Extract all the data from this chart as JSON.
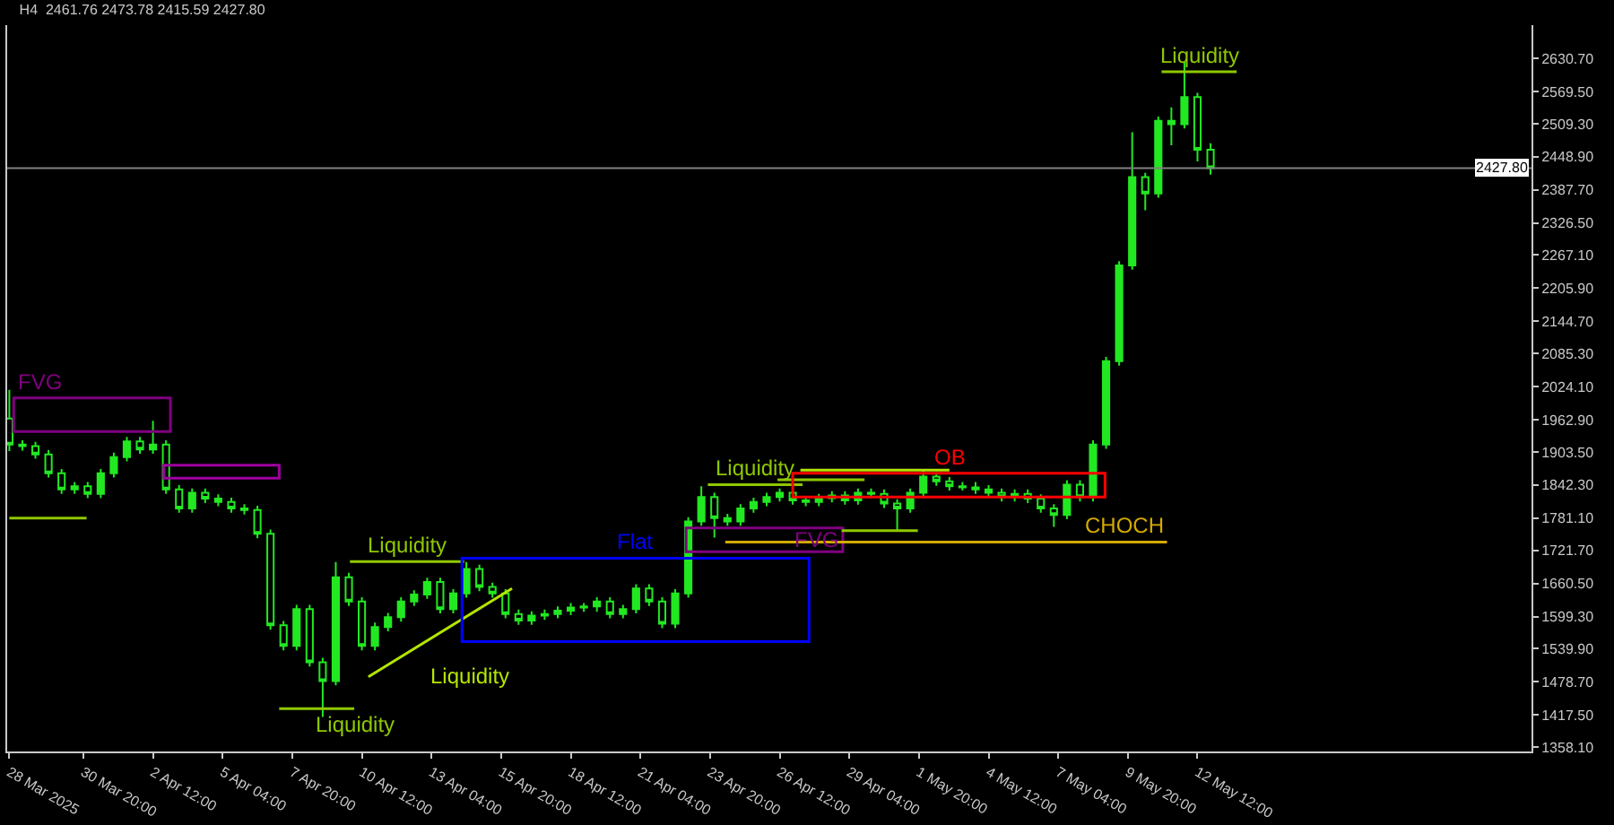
{
  "chart_data": {
    "type": "candlestick",
    "title": "H4  2461.76 2473.78 2415.59 2427.80",
    "xlim": [
      "2025-03-27T22:00",
      "2025-05-25T07:00"
    ],
    "xticks": [
      {
        "value": "2025-03-28T00:00",
        "label": "28 Mar 2025"
      },
      {
        "value": "2025-03-30T20:00",
        "label": "30 Mar 20:00"
      },
      {
        "value": "2025-04-02T12:00",
        "label": "2 Apr 12:00"
      },
      {
        "value": "2025-04-05T04:00",
        "label": "5 Apr 04:00"
      },
      {
        "value": "2025-04-07T20:00",
        "label": "7 Apr 20:00"
      },
      {
        "value": "2025-04-10T12:00",
        "label": "10 Apr 12:00"
      },
      {
        "value": "2025-04-13T04:00",
        "label": "13 Apr 04:00"
      },
      {
        "value": "2025-04-15T20:00",
        "label": "15 Apr 20:00"
      },
      {
        "value": "2025-04-18T12:00",
        "label": "18 Apr 12:00"
      },
      {
        "value": "2025-04-21T04:00",
        "label": "21 Apr 04:00"
      },
      {
        "value": "2025-04-23T20:00",
        "label": "23 Apr 20:00"
      },
      {
        "value": "2025-04-26T12:00",
        "label": "26 Apr 12:00"
      },
      {
        "value": "2025-04-29T04:00",
        "label": "29 Apr 04:00"
      },
      {
        "value": "2025-05-01T20:00",
        "label": "1 May 20:00"
      },
      {
        "value": "2025-05-04T12:00",
        "label": "4 May 12:00"
      },
      {
        "value": "2025-05-07T04:00",
        "label": "7 May 04:00"
      },
      {
        "value": "2025-05-09T20:00",
        "label": "9 May 20:00"
      },
      {
        "value": "2025-05-12T12:00",
        "label": "12 May 12:00"
      }
    ],
    "ylim": [
      1350,
      2692
    ],
    "yticks": [
      {
        "value": 1358.1,
        "label": "1358.10"
      },
      {
        "value": 1417.5,
        "label": "1417.50"
      },
      {
        "value": 1478.7,
        "label": "1478.70"
      },
      {
        "value": 1539.9,
        "label": "1539.90"
      },
      {
        "value": 1599.3,
        "label": "1599.30"
      },
      {
        "value": 1660.5,
        "label": "1660.50"
      },
      {
        "value": 1721.7,
        "label": "1721.70"
      },
      {
        "value": 1781.1,
        "label": "1781.10"
      },
      {
        "value": 1842.3,
        "label": "1842.30"
      },
      {
        "value": 1903.5,
        "label": "1903.50"
      },
      {
        "value": 1962.9,
        "label": "1962.90"
      },
      {
        "value": 2024.1,
        "label": "2024.10"
      },
      {
        "value": 2085.3,
        "label": "2085.30"
      },
      {
        "value": 2144.7,
        "label": "2144.70"
      },
      {
        "value": 2205.9,
        "label": "2205.90"
      },
      {
        "value": 2267.1,
        "label": "2267.10"
      },
      {
        "value": 2326.5,
        "label": "2326.50"
      },
      {
        "value": 2387.7,
        "label": "2387.70"
      },
      {
        "value": 2448.9,
        "label": "2448.90"
      },
      {
        "value": 2509.3,
        "label": "2509.30"
      },
      {
        "value": 2569.5,
        "label": "2569.50"
      },
      {
        "value": 2630.7,
        "label": "2630.70"
      }
    ],
    "grid": false,
    "legend": false,
    "ref_lines": [
      {
        "axis": "y",
        "value": 2427.8,
        "label": "2427.80",
        "color": "#808080"
      }
    ],
    "series": [
      {
        "color": "#22e822",
        "x": [
          "2025-03-28T00:00",
          "2025-03-28T12:00",
          "2025-03-29T00:00",
          "2025-03-29T12:00",
          "2025-03-30T00:00",
          "2025-03-30T12:00",
          "2025-03-31T00:00",
          "2025-03-31T12:00",
          "2025-04-01T00:00",
          "2025-04-01T12:00",
          "2025-04-02T00:00",
          "2025-04-02T12:00",
          "2025-04-03T00:00",
          "2025-04-03T12:00",
          "2025-04-04T00:00",
          "2025-04-04T12:00",
          "2025-04-05T00:00",
          "2025-04-05T12:00",
          "2025-04-06T00:00",
          "2025-04-06T12:00",
          "2025-04-07T00:00",
          "2025-04-07T12:00",
          "2025-04-08T00:00",
          "2025-04-08T12:00",
          "2025-04-09T00:00",
          "2025-04-09T12:00",
          "2025-04-10T00:00",
          "2025-04-10T12:00",
          "2025-04-11T00:00",
          "2025-04-11T12:00",
          "2025-04-12T00:00",
          "2025-04-12T12:00",
          "2025-04-13T00:00",
          "2025-04-13T12:00",
          "2025-04-14T00:00",
          "2025-04-14T12:00",
          "2025-04-15T00:00",
          "2025-04-15T12:00",
          "2025-04-16T00:00",
          "2025-04-16T12:00",
          "2025-04-17T00:00",
          "2025-04-17T12:00",
          "2025-04-18T00:00",
          "2025-04-18T12:00",
          "2025-04-19T00:00",
          "2025-04-19T12:00",
          "2025-04-20T00:00",
          "2025-04-20T12:00",
          "2025-04-21T00:00",
          "2025-04-21T12:00",
          "2025-04-22T00:00",
          "2025-04-22T12:00",
          "2025-04-23T00:00",
          "2025-04-23T12:00",
          "2025-04-24T00:00",
          "2025-04-24T12:00",
          "2025-04-25T00:00",
          "2025-04-25T12:00",
          "2025-04-26T00:00",
          "2025-04-26T12:00",
          "2025-04-27T00:00",
          "2025-04-27T12:00",
          "2025-04-28T00:00",
          "2025-04-28T12:00",
          "2025-04-29T00:00",
          "2025-04-29T12:00",
          "2025-04-30T00:00",
          "2025-04-30T12:00",
          "2025-05-01T00:00",
          "2025-05-01T12:00",
          "2025-05-02T00:00",
          "2025-05-02T12:00",
          "2025-05-03T00:00",
          "2025-05-03T12:00",
          "2025-05-04T00:00",
          "2025-05-04T12:00",
          "2025-05-05T00:00",
          "2025-05-05T12:00",
          "2025-05-06T00:00",
          "2025-05-06T12:00",
          "2025-05-07T00:00",
          "2025-05-07T12:00",
          "2025-05-08T00:00",
          "2025-05-08T12:00",
          "2025-05-09T00:00",
          "2025-05-09T12:00",
          "2025-05-10T00:00",
          "2025-05-10T12:00",
          "2025-05-11T00:00",
          "2025-05-11T12:00",
          "2025-05-12T00:00",
          "2025-05-12T12:00",
          "2025-05-13T00:00"
        ],
        "ohlc": [
          [
            1965,
            2018,
            1905,
            1917
          ],
          [
            1917,
            1925,
            1906,
            1914
          ],
          [
            1914,
            1922,
            1891,
            1899
          ],
          [
            1899,
            1907,
            1856,
            1864
          ],
          [
            1864,
            1872,
            1826,
            1834
          ],
          [
            1834,
            1848,
            1826,
            1840
          ],
          [
            1840,
            1848,
            1818,
            1826
          ],
          [
            1826,
            1872,
            1818,
            1864
          ],
          [
            1864,
            1902,
            1856,
            1894
          ],
          [
            1894,
            1931,
            1886,
            1923
          ],
          [
            1923,
            1931,
            1900,
            1908
          ],
          [
            1908,
            1961,
            1900,
            1917
          ],
          [
            1917,
            1925,
            1826,
            1834
          ],
          [
            1834,
            1842,
            1791,
            1799
          ],
          [
            1799,
            1836,
            1791,
            1828
          ],
          [
            1828,
            1836,
            1809,
            1817
          ],
          [
            1817,
            1825,
            1803,
            1811
          ],
          [
            1811,
            1819,
            1791,
            1799
          ],
          [
            1799,
            1807,
            1788,
            1796
          ],
          [
            1796,
            1804,
            1744,
            1752
          ],
          [
            1752,
            1760,
            1575,
            1583
          ],
          [
            1583,
            1591,
            1537,
            1545
          ],
          [
            1545,
            1621,
            1537,
            1613
          ],
          [
            1613,
            1621,
            1507,
            1515
          ],
          [
            1515,
            1523,
            1414,
            1480
          ],
          [
            1480,
            1700,
            1472,
            1672
          ],
          [
            1672,
            1680,
            1619,
            1627
          ],
          [
            1627,
            1635,
            1537,
            1545
          ],
          [
            1545,
            1588,
            1537,
            1580
          ],
          [
            1580,
            1606,
            1572,
            1598
          ],
          [
            1598,
            1635,
            1590,
            1627
          ],
          [
            1627,
            1648,
            1619,
            1640
          ],
          [
            1640,
            1671,
            1632,
            1663
          ],
          [
            1663,
            1671,
            1605,
            1613
          ],
          [
            1613,
            1650,
            1605,
            1642
          ],
          [
            1642,
            1700,
            1634,
            1687
          ],
          [
            1687,
            1695,
            1646,
            1654
          ],
          [
            1654,
            1662,
            1634,
            1642
          ],
          [
            1642,
            1650,
            1596,
            1604
          ],
          [
            1604,
            1612,
            1584,
            1592
          ],
          [
            1592,
            1609,
            1584,
            1601
          ],
          [
            1601,
            1612,
            1593,
            1604
          ],
          [
            1604,
            1618,
            1596,
            1610
          ],
          [
            1610,
            1624,
            1602,
            1616
          ],
          [
            1616,
            1624,
            1608,
            1618
          ],
          [
            1618,
            1635,
            1608,
            1627
          ],
          [
            1627,
            1635,
            1596,
            1604
          ],
          [
            1604,
            1621,
            1596,
            1613
          ],
          [
            1613,
            1659,
            1605,
            1651
          ],
          [
            1651,
            1659,
            1619,
            1627
          ],
          [
            1627,
            1635,
            1578,
            1586
          ],
          [
            1586,
            1650,
            1578,
            1642
          ],
          [
            1642,
            1783,
            1634,
            1775
          ],
          [
            1775,
            1840,
            1767,
            1820
          ],
          [
            1820,
            1828,
            1745,
            1781
          ],
          [
            1781,
            1789,
            1767,
            1775
          ],
          [
            1775,
            1807,
            1767,
            1799
          ],
          [
            1799,
            1819,
            1791,
            1811
          ],
          [
            1811,
            1828,
            1803,
            1820
          ],
          [
            1820,
            1836,
            1812,
            1828
          ],
          [
            1828,
            1836,
            1806,
            1814
          ],
          [
            1814,
            1822,
            1803,
            1811
          ],
          [
            1811,
            1826,
            1803,
            1818
          ],
          [
            1818,
            1831,
            1810,
            1823
          ],
          [
            1823,
            1831,
            1806,
            1814
          ],
          [
            1814,
            1836,
            1806,
            1828
          ],
          [
            1828,
            1836,
            1818,
            1826
          ],
          [
            1826,
            1834,
            1800,
            1808
          ],
          [
            1808,
            1816,
            1758,
            1799
          ],
          [
            1799,
            1836,
            1791,
            1828
          ],
          [
            1828,
            1870,
            1820,
            1858
          ],
          [
            1858,
            1866,
            1841,
            1849
          ],
          [
            1849,
            1857,
            1832,
            1840
          ],
          [
            1840,
            1848,
            1832,
            1838
          ],
          [
            1838,
            1848,
            1826,
            1834
          ],
          [
            1834,
            1842,
            1820,
            1828
          ],
          [
            1828,
            1836,
            1812,
            1820
          ],
          [
            1820,
            1834,
            1812,
            1826
          ],
          [
            1826,
            1834,
            1809,
            1817
          ],
          [
            1817,
            1825,
            1791,
            1799
          ],
          [
            1799,
            1807,
            1765,
            1787
          ],
          [
            1787,
            1851,
            1779,
            1843
          ],
          [
            1843,
            1851,
            1812,
            1820
          ],
          [
            1820,
            1925,
            1812,
            1917
          ],
          [
            1917,
            2079,
            1909,
            2071
          ],
          [
            2071,
            2256,
            2063,
            2248
          ],
          [
            2248,
            2494,
            2240,
            2411
          ],
          [
            2411,
            2419,
            2350,
            2381
          ],
          [
            2381,
            2523,
            2373,
            2515
          ],
          [
            2515,
            2540,
            2470,
            2509
          ],
          [
            2509,
            2624,
            2501,
            2559
          ],
          [
            2559,
            2567,
            2440,
            2461.76
          ],
          [
            2461.76,
            2473.78,
            2415.59,
            2427.8
          ]
        ]
      },
      {
        "type": "line",
        "name": "FVG",
        "color": "#800080",
        "x": [
          "2025-03-28T04:00",
          "2025-04-03T04:00",
          "2025-04-03T04:00",
          "2025-03-28T04:00",
          "2025-03-28T04:00",
          "2025-04-03T04:00"
        ],
        "values": [
          2003,
          2003,
          1941,
          1941,
          2003,
          2003
        ]
      },
      {
        "type": "line",
        "color": "#a000a0",
        "x": [
          "2025-04-02T22:00",
          "2025-04-07T08:00",
          "2025-04-07T08:00",
          "2025-04-02T22:00",
          "2025-04-02T22:00",
          "2025-04-07T08:00"
        ],
        "values": [
          1879,
          1879,
          1855,
          1855,
          1879,
          1879
        ]
      },
      {
        "type": "line",
        "color": "#8fc800",
        "x": [
          "2025-03-28T00:00",
          "2025-03-30T23:00"
        ],
        "values": [
          1781,
          1781
        ]
      },
      {
        "type": "line",
        "name": "Liquidity",
        "color": "#8fc800",
        "x": [
          "2025-04-07T08:00",
          "2025-04-10T05:00"
        ],
        "values": [
          1429,
          1429
        ]
      },
      {
        "type": "line",
        "name": "Liquidity",
        "color": "#8fc800",
        "x": [
          "2025-04-10T01:00",
          "2025-04-14T10:00"
        ],
        "values": [
          1701,
          1701
        ]
      },
      {
        "type": "line",
        "name": "Liquidity",
        "color": "#b4e600",
        "x": [
          "2025-04-10T18:00",
          "2025-04-16T06:00"
        ],
        "values": [
          1488,
          1651
        ]
      },
      {
        "type": "line",
        "name": "Flat",
        "color": "#0000ff",
        "x": [
          "2025-04-14T08:00",
          "2025-04-27T15:00",
          "2025-04-27T15:00",
          "2025-04-14T08:00",
          "2025-04-14T08:00",
          "2025-04-27T15:00"
        ],
        "values": [
          1707,
          1707,
          1553,
          1553,
          1707,
          1707
        ]
      },
      {
        "type": "line",
        "name": "FVG",
        "color": "#800080",
        "x": [
          "2025-04-22T22:00",
          "2025-04-28T22:00",
          "2025-04-28T22:00",
          "2025-04-22T22:00",
          "2025-04-22T22:00",
          "2025-04-28T22:00"
        ],
        "values": [
          1763,
          1763,
          1719,
          1719,
          1763,
          1763
        ]
      },
      {
        "type": "line",
        "name": "CHOCH",
        "color": "#d4aa00",
        "x": [
          "2025-04-24T10:00",
          "2025-05-11T08:00"
        ],
        "values": [
          1737,
          1737
        ]
      },
      {
        "type": "line",
        "name": "Liquidity",
        "color": "#8fc800",
        "x": [
          "2025-04-23T18:00",
          "2025-04-27T09:00"
        ],
        "values": [
          1843,
          1843
        ]
      },
      {
        "type": "line",
        "color": "#8fc800",
        "x": [
          "2025-04-26T10:00",
          "2025-04-29T18:00"
        ],
        "values": [
          1852,
          1852
        ]
      },
      {
        "type": "line",
        "color": "#b4e600",
        "x": [
          "2025-04-27T07:00",
          "2025-05-03T00:00"
        ],
        "values": [
          1870,
          1870
        ]
      },
      {
        "type": "line",
        "color": "#8fc800",
        "x": [
          "2025-04-28T21:00",
          "2025-05-01T19:00"
        ],
        "values": [
          1758,
          1758
        ]
      },
      {
        "type": "line",
        "name": "OB",
        "color": "#ff0000",
        "x": [
          "2025-04-27T00:00",
          "2025-05-08T23:00",
          "2025-05-08T23:00",
          "2025-04-27T00:00",
          "2025-04-27T00:00",
          "2025-05-08T23:00"
        ],
        "values": [
          1864,
          1864,
          1820,
          1820,
          1864,
          1864
        ]
      },
      {
        "type": "line",
        "name": "Liquidity",
        "color": "#8fc800",
        "x": [
          "2025-05-11T03:00",
          "2025-05-14T00:00"
        ],
        "values": [
          2606,
          2606
        ]
      }
    ]
  }
}
